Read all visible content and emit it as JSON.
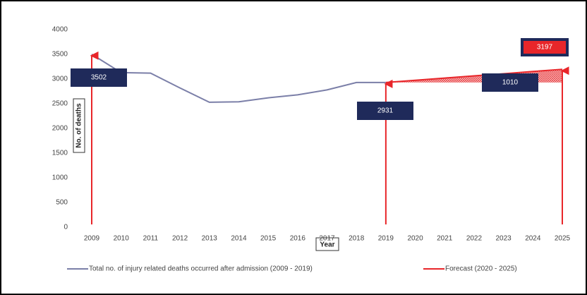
{
  "chart_data": {
    "type": "line",
    "categories": [
      "2009",
      "2010",
      "2011",
      "2012",
      "2013",
      "2014",
      "2015",
      "2016",
      "2017",
      "2018",
      "2019",
      "2020",
      "2021",
      "2022",
      "2023",
      "2024",
      "2025"
    ],
    "series": [
      {
        "name": "Total no. of injury related deaths occurred after admission (2009 - 2019)",
        "color": "#7b7fa8",
        "values": [
          3502,
          3130,
          3120,
          2820,
          2530,
          2540,
          2620,
          2680,
          2780,
          2930,
          2931,
          null,
          null,
          null,
          null,
          null,
          null
        ]
      },
      {
        "name": "Forecast (2020 - 2025)",
        "color": "#e8262a",
        "values": [
          null,
          null,
          null,
          null,
          null,
          null,
          null,
          null,
          null,
          null,
          2931,
          2975,
          3020,
          3064,
          3108,
          3153,
          3197
        ]
      }
    ],
    "annotations": [
      "1010"
    ],
    "xlabel": "Year",
    "ylabel": "No. of deaths",
    "ylim": [
      0,
      4000
    ],
    "yticks": [
      0,
      500,
      1000,
      1500,
      2000,
      2500,
      3000,
      3500,
      4000
    ],
    "grid": false,
    "legend": "bottom"
  }
}
